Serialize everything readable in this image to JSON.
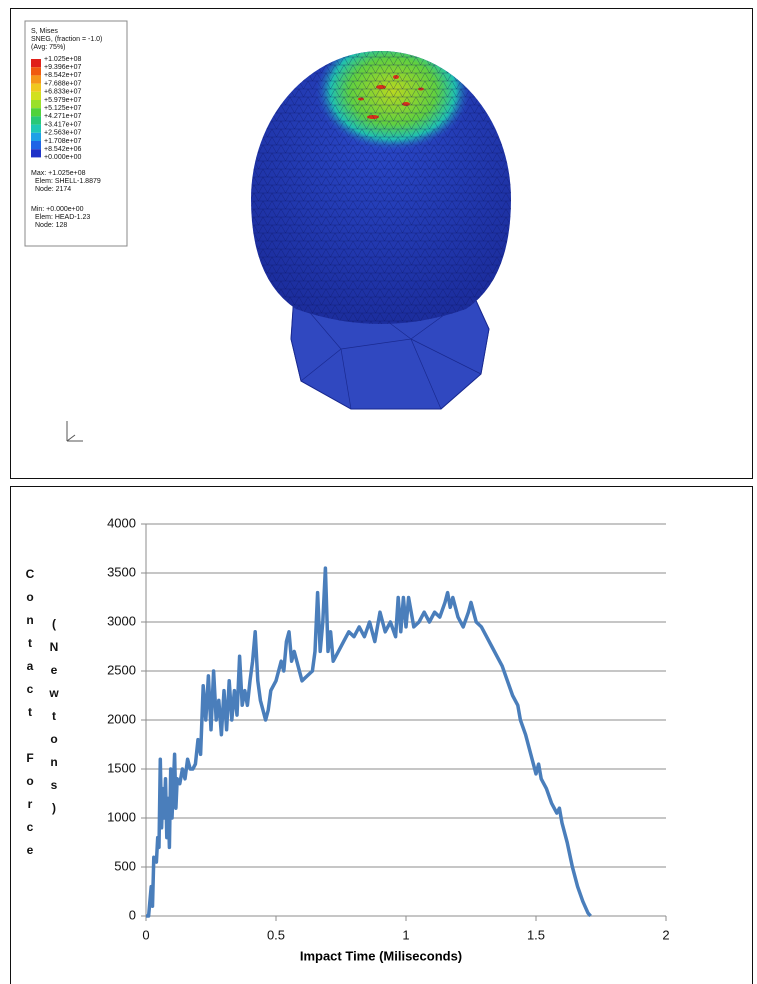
{
  "fea_panel": {
    "legend_title": [
      "S, Mises",
      "SNEG, (fraction = -1.0)",
      "(Avg: 75%)"
    ],
    "legend_values": [
      "+1.025e+08",
      "+9.396e+07",
      "+8.542e+07",
      "+7.688e+07",
      "+6.833e+07",
      "+5.979e+07",
      "+5.125e+07",
      "+4.271e+07",
      "+3.417e+07",
      "+2.563e+07",
      "+1.708e+07",
      "+8.542e+06",
      "+0.000e+00"
    ],
    "band_colors": [
      "#e0201a",
      "#f05a10",
      "#f5961a",
      "#f0c81e",
      "#d2e01e",
      "#9ae02a",
      "#50d23c",
      "#28c878",
      "#1ec8b4",
      "#1ea0e6",
      "#1e64e6",
      "#1e32c8"
    ],
    "max_info": [
      "Max: +1.025e+08",
      "Elem: SHELL-1.8879",
      "Node: 2174"
    ],
    "min_info": [
      "Min: +0.000e+00",
      "Elem: HEAD-1.23",
      "Node: 128"
    ]
  },
  "chart_data": {
    "type": "line",
    "xlabel": "Impact Time (Miliseconds)",
    "ylabel": [
      "Contact Force",
      "(Newtons)"
    ],
    "xlim": [
      0,
      2
    ],
    "xticks": [
      0,
      0.5,
      1,
      1.5,
      2
    ],
    "ylim": [
      0,
      4000
    ],
    "yticks": [
      0,
      500,
      1000,
      1500,
      2000,
      2500,
      3000,
      3500,
      4000
    ],
    "grid": true,
    "x": [
      0,
      0.01,
      0.02,
      0.025,
      0.03,
      0.04,
      0.045,
      0.05,
      0.055,
      0.06,
      0.065,
      0.07,
      0.075,
      0.08,
      0.085,
      0.09,
      0.095,
      0.1,
      0.11,
      0.115,
      0.12,
      0.13,
      0.14,
      0.15,
      0.16,
      0.17,
      0.18,
      0.19,
      0.2,
      0.21,
      0.22,
      0.23,
      0.24,
      0.25,
      0.26,
      0.27,
      0.28,
      0.29,
      0.3,
      0.31,
      0.32,
      0.33,
      0.34,
      0.35,
      0.36,
      0.37,
      0.38,
      0.39,
      0.4,
      0.41,
      0.42,
      0.43,
      0.44,
      0.45,
      0.46,
      0.47,
      0.48,
      0.5,
      0.52,
      0.53,
      0.54,
      0.55,
      0.56,
      0.57,
      0.58,
      0.59,
      0.6,
      0.62,
      0.64,
      0.65,
      0.66,
      0.67,
      0.68,
      0.69,
      0.7,
      0.71,
      0.72,
      0.74,
      0.76,
      0.78,
      0.8,
      0.82,
      0.84,
      0.86,
      0.88,
      0.9,
      0.92,
      0.94,
      0.96,
      0.97,
      0.98,
      0.99,
      1.0,
      1.01,
      1.02,
      1.03,
      1.05,
      1.07,
      1.09,
      1.11,
      1.13,
      1.15,
      1.16,
      1.17,
      1.18,
      1.2,
      1.22,
      1.24,
      1.25,
      1.27,
      1.29,
      1.31,
      1.33,
      1.35,
      1.37,
      1.39,
      1.41,
      1.43,
      1.44,
      1.46,
      1.48,
      1.5,
      1.51,
      1.52,
      1.54,
      1.56,
      1.58,
      1.59,
      1.6,
      1.62,
      1.64,
      1.66,
      1.68,
      1.7,
      1.71
    ],
    "series": [
      {
        "color": "#4a7ebb",
        "values": [
          0,
          0,
          300,
          100,
          600,
          550,
          800,
          700,
          1600,
          900,
          1300,
          1000,
          1400,
          800,
          1200,
          700,
          1500,
          1000,
          1650,
          1100,
          1400,
          1350,
          1500,
          1400,
          1600,
          1500,
          1500,
          1550,
          1800,
          1650,
          2350,
          2000,
          2450,
          1900,
          2500,
          2000,
          2200,
          1850,
          2300,
          1900,
          2400,
          2000,
          2300,
          2050,
          2650,
          2150,
          2300,
          2150,
          2400,
          2600,
          2900,
          2400,
          2200,
          2100,
          2000,
          2100,
          2300,
          2400,
          2600,
          2500,
          2800,
          2900,
          2600,
          2700,
          2600,
          2500,
          2400,
          2450,
          2500,
          2700,
          3300,
          2700,
          3000,
          3550,
          2700,
          2900,
          2600,
          2700,
          2800,
          2900,
          2850,
          2950,
          2850,
          3000,
          2800,
          3100,
          2900,
          3000,
          2850,
          3250,
          2900,
          3250,
          2950,
          3250,
          3100,
          2950,
          3000,
          3100,
          3000,
          3100,
          3050,
          3200,
          3300,
          3150,
          3250,
          3050,
          2950,
          3100,
          3200,
          3000,
          2950,
          2850,
          2750,
          2650,
          2550,
          2400,
          2250,
          2150,
          2000,
          1850,
          1650,
          1450,
          1550,
          1400,
          1300,
          1150,
          1050,
          1100,
          950,
          750,
          500,
          300,
          150,
          30,
          0
        ]
      }
    ]
  }
}
